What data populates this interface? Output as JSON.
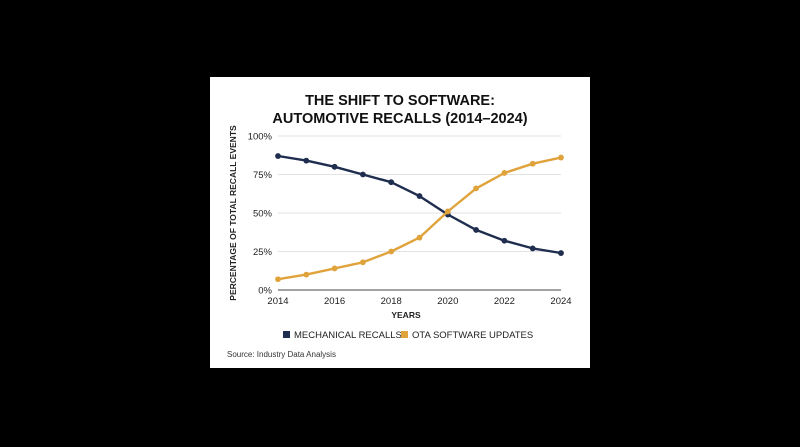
{
  "chart_data": {
    "type": "line",
    "title_lines": [
      "THE SHIFT TO SOFTWARE:",
      "AUTOMOTIVE RECALLS (2014–2024)"
    ],
    "xlabel": "YEARS",
    "ylabel": "PERCENTAGE OF TOTAL RECALL EVENTS",
    "x": [
      2014,
      2015,
      2016,
      2017,
      2018,
      2019,
      2020,
      2021,
      2022,
      2023,
      2024
    ],
    "x_ticks": [
      "2014",
      "2016",
      "2018",
      "2020",
      "2022",
      "2024"
    ],
    "y_ticks": [
      "0%",
      "25%",
      "50%",
      "75%",
      "100%"
    ],
    "ylim": [
      0,
      100
    ],
    "xlim": [
      2014,
      2024
    ],
    "grid": "horizontal",
    "legend_position": "bottom",
    "series": [
      {
        "name": "MECHANICAL RECALLS",
        "color": "#1f2d4f",
        "values": [
          87,
          84,
          80,
          75,
          70,
          61,
          49,
          39,
          32,
          27,
          24
        ]
      },
      {
        "name": "OTA SOFTWARE UPDATES",
        "color": "#e0a33c",
        "values": [
          7,
          10,
          14,
          18,
          25,
          34,
          51,
          66,
          76,
          82,
          86
        ]
      }
    ],
    "source": "Source: Industry Data Analysis"
  }
}
